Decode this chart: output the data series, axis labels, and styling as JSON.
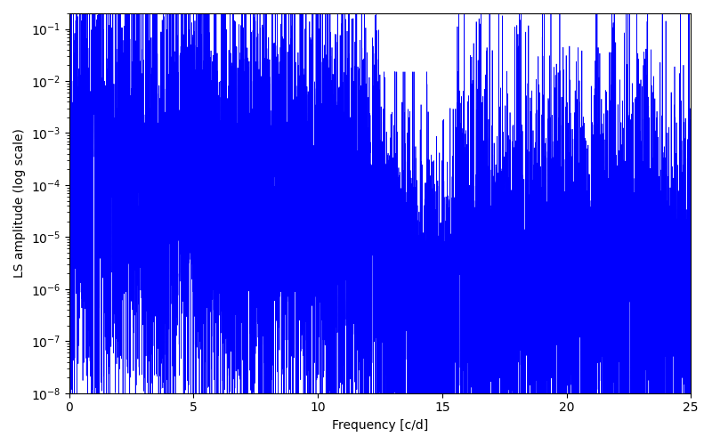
{
  "line_color": "#0000ff",
  "xlabel": "Frequency [c/d]",
  "ylabel": "LS amplitude (log scale)",
  "xlim": [
    0,
    25
  ],
  "ylim": [
    1e-08,
    0.2
  ],
  "freq_min": 0.0,
  "freq_max": 25.0,
  "n_points": 8000,
  "seed": 12345,
  "background_color": "#ffffff",
  "linewidth": 0.5,
  "figwidth": 8.0,
  "figheight": 5.0,
  "dpi": 100
}
